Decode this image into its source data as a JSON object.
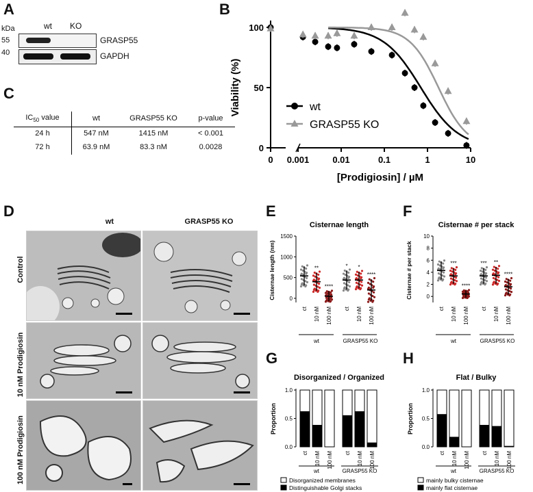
{
  "panels": {
    "A": "A",
    "B": "B",
    "C": "C",
    "D": "D",
    "E": "E",
    "F": "F",
    "G": "G",
    "H": "H"
  },
  "panelA": {
    "kda": "kDa",
    "lanes": [
      "wt",
      "KO"
    ],
    "markers": [
      "55",
      "40"
    ],
    "bands": [
      "GRASP55",
      "GAPDH"
    ]
  },
  "panelC": {
    "header": {
      "ic50_main": "IC",
      "ic50_sub": "50",
      "ic50_rest": " value",
      "wt": "wt",
      "ko": "GRASP55 KO",
      "p": "p-value"
    },
    "rows": [
      {
        "t": "24 h",
        "wt": "547 nM",
        "ko": "1415 nM",
        "p": "< 0.001"
      },
      {
        "t": "72 h",
        "wt": "63.9 nM",
        "ko": "83.3 nM",
        "p": "0.0028"
      }
    ]
  },
  "panelD": {
    "cols": [
      "wt",
      "GRASP55 KO"
    ],
    "rows": [
      "Control",
      "10 nM Prodigiosin",
      "100 nM Prodigiosin"
    ]
  },
  "chart_data": [
    {
      "type": "scatter",
      "panel": "B",
      "xlabel": "[Prodigiosin] / µM",
      "ylabel": "Viability (%)",
      "x_scale": "log (with break at 0)",
      "xticks": [
        "0",
        "0.001",
        "0.01",
        "0.1",
        "1",
        "10"
      ],
      "yticks": [
        "0",
        "50",
        "100"
      ],
      "ylim": [
        0,
        110
      ],
      "legend": "center-left",
      "series": [
        {
          "name": "wt",
          "color": "#000000",
          "marker": "circle",
          "x": [
            0,
            0.0013,
            0.0025,
            0.005,
            0.008,
            0.02,
            0.05,
            0.15,
            0.3,
            0.5,
            0.8,
            1.5,
            3,
            8
          ],
          "y": [
            100,
            92,
            88,
            84,
            83,
            86,
            80,
            77,
            62,
            50,
            35,
            21,
            12,
            2
          ]
        },
        {
          "name": "GRASP55 KO",
          "color": "#999999",
          "marker": "triangle",
          "x": [
            0,
            0.0013,
            0.0025,
            0.005,
            0.008,
            0.02,
            0.05,
            0.15,
            0.3,
            0.5,
            0.8,
            1.5,
            3,
            8
          ],
          "y": [
            99,
            94,
            93,
            93,
            95,
            93,
            100,
            100,
            112,
            98,
            92,
            70,
            47,
            22
          ]
        }
      ]
    },
    {
      "type": "scatter",
      "panel": "E",
      "title": "Cisternae length",
      "ylabel": "Cisternae length (nm)",
      "yticks": [
        "0",
        "500",
        "1000",
        "1500"
      ],
      "ylim": [
        -100,
        1500
      ],
      "categories": [
        "ct",
        "10 nM",
        "100 nM",
        "ct",
        "10 nM",
        "100 nM"
      ],
      "groups": [
        "wt",
        "GRASP55 KO"
      ],
      "means": [
        540,
        400,
        50,
        440,
        440,
        200
      ],
      "sd": [
        230,
        220,
        120,
        230,
        200,
        260
      ],
      "significance": [
        "",
        "**",
        "****",
        "*",
        "*",
        "****"
      ]
    },
    {
      "type": "scatter",
      "panel": "F",
      "title": "Cisternae # per stack",
      "ylabel": "Cisternae # per stack",
      "yticks": [
        "0",
        "2",
        "4",
        "6",
        "8",
        "10"
      ],
      "ylim": [
        -1,
        10
      ],
      "categories": [
        "ct",
        "10 nM",
        "100 nM",
        "ct",
        "10 nM",
        "100 nM"
      ],
      "groups": [
        "wt",
        "GRASP55 KO"
      ],
      "means": [
        4.3,
        3.4,
        0.4,
        3.4,
        3.5,
        1.6
      ],
      "sd": [
        1.5,
        1.3,
        0.6,
        1.3,
        1.4,
        1.3
      ],
      "significance": [
        "",
        "***",
        "****",
        "***",
        "**",
        "****"
      ]
    },
    {
      "type": "bar",
      "panel": "G",
      "title": "Disorganized / Organized",
      "ylabel": "Proportion",
      "yticks": [
        "0.0",
        "0.5",
        "1.0"
      ],
      "ylim": [
        0,
        1
      ],
      "categories": [
        "ct",
        "10 nM",
        "100 nM",
        "ct",
        "10 nM",
        "100 nM"
      ],
      "groups": [
        "wt",
        "GRASP55 KO"
      ],
      "series": [
        {
          "name": "Distinguishable Golgi stacks",
          "values": [
            0.62,
            0.38,
            0.0,
            0.55,
            0.62,
            0.07
          ]
        },
        {
          "name": "Disorganized membranes",
          "values": [
            0.38,
            0.62,
            1.0,
            0.45,
            0.38,
            0.93
          ]
        }
      ]
    },
    {
      "type": "bar",
      "panel": "H",
      "title": "Flat / Bulky",
      "ylabel": "Proportion",
      "yticks": [
        "0.0",
        "0.5",
        "1.0"
      ],
      "ylim": [
        0,
        1
      ],
      "categories": [
        "ct",
        "10 nM",
        "100 nM",
        "ct",
        "10 nM",
        "100 nM"
      ],
      "groups": [
        "wt",
        "GRASP55 KO"
      ],
      "series": [
        {
          "name": "mainly flat cisternae",
          "values": [
            0.57,
            0.17,
            0.0,
            0.38,
            0.36,
            0.01
          ]
        },
        {
          "name": "mainly bulky cisternae",
          "values": [
            0.43,
            0.83,
            1.0,
            0.62,
            0.64,
            0.99
          ]
        }
      ]
    }
  ]
}
